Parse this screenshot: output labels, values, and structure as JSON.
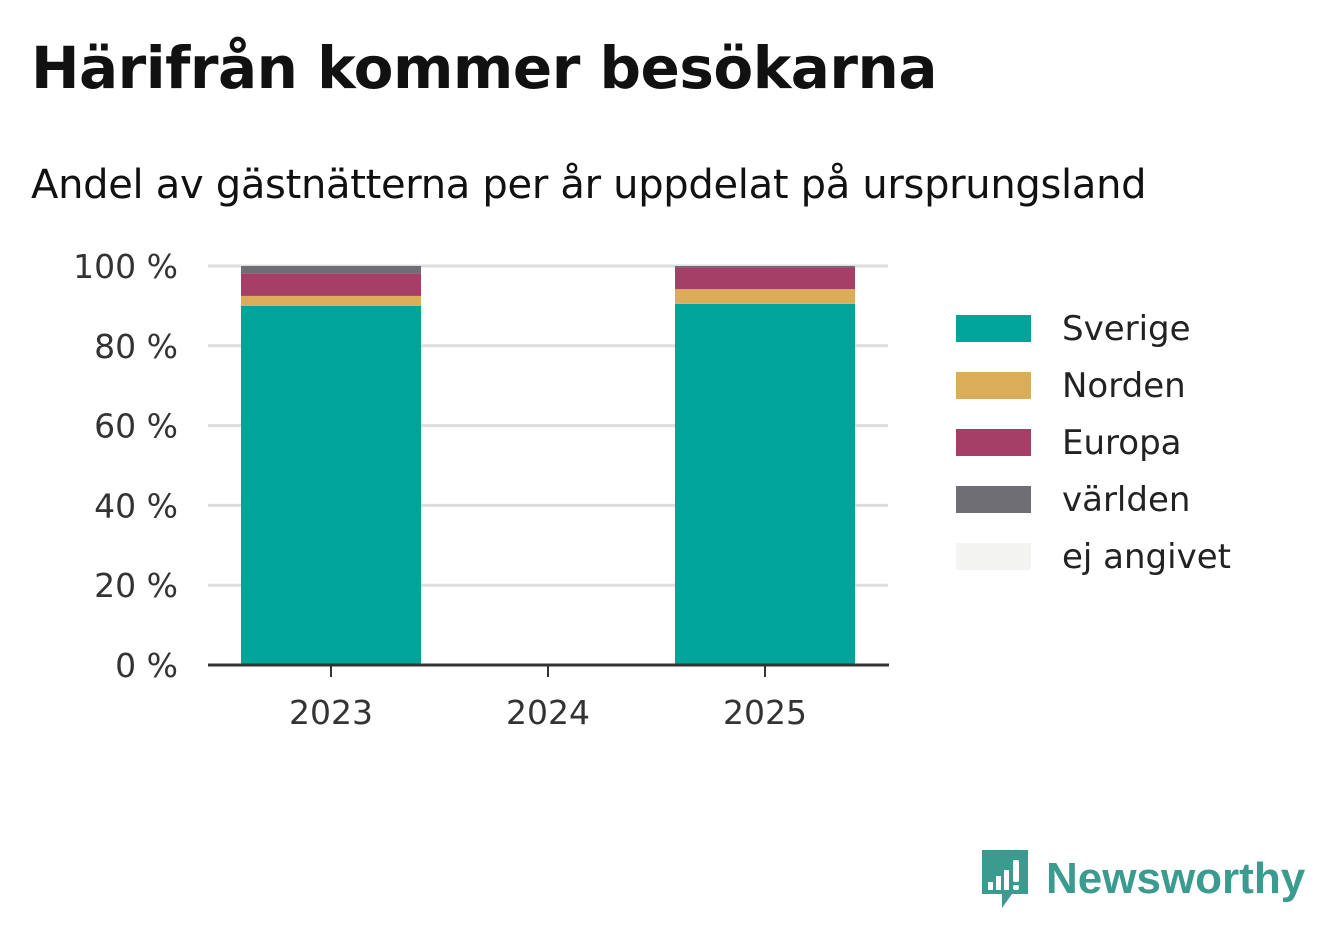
{
  "header": {
    "title": "Härifrån kommer besökarna",
    "subtitle": "Andel av gästnätterna per år uppdelat på ursprungsland"
  },
  "chart_data": {
    "type": "bar",
    "stacked": true,
    "categories": [
      "2023",
      "2024",
      "2025"
    ],
    "series": [
      {
        "name": "Sverige",
        "color": "#00a499",
        "values": [
          90.0,
          null,
          90.5
        ]
      },
      {
        "name": "Norden",
        "color": "#dbac5a",
        "values": [
          2.5,
          null,
          3.7
        ]
      },
      {
        "name": "Europa",
        "color": "#a63f67",
        "values": [
          5.7,
          null,
          5.3
        ]
      },
      {
        "name": "världen",
        "color": "#6e6e74",
        "values": [
          1.8,
          null,
          0.5
        ]
      },
      {
        "name": "ej angivet",
        "color": "#f3f3f2",
        "values": [
          0.0,
          null,
          0.0
        ]
      }
    ],
    "ylim": [
      0,
      100
    ],
    "yticks": [
      0,
      20,
      40,
      60,
      80,
      100
    ],
    "ytick_labels": [
      "0 %",
      "20 %",
      "40 %",
      "60 %",
      "80 %",
      "100 %"
    ],
    "xlabel": "",
    "ylabel": "",
    "grid": true,
    "legend_position": "right"
  },
  "brand": {
    "name": "Newsworthy",
    "icon": "newsworthy-logo-icon",
    "color": "#3a9b8e"
  }
}
